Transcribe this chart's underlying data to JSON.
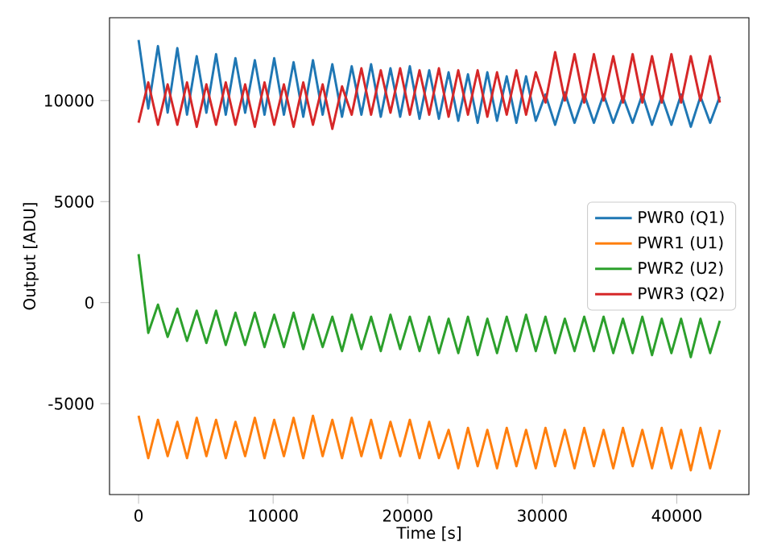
{
  "chart_data": {
    "type": "line",
    "xlabel": "Time [s]",
    "ylabel": "Output [ADU]",
    "x": [
      0,
      720,
      1440,
      2160,
      2880,
      3600,
      4320,
      5040,
      5760,
      6480,
      7200,
      7920,
      8640,
      9360,
      10080,
      10800,
      11520,
      12240,
      12960,
      13680,
      14400,
      15120,
      15840,
      16560,
      17280,
      18000,
      18720,
      19440,
      20160,
      20880,
      21600,
      22320,
      23040,
      23760,
      24480,
      25200,
      25920,
      26640,
      27360,
      28080,
      28800,
      29520,
      30240,
      30960,
      31680,
      32400,
      33120,
      33840,
      34560,
      35280,
      36000,
      36720,
      37440,
      38160,
      38880,
      39600,
      40320,
      41040,
      41760,
      42480,
      43200
    ],
    "series": [
      {
        "name": "PWR0 (Q1)",
        "color": "#1f77b4",
        "values": [
          13000,
          9600,
          12700,
          9400,
          12600,
          9300,
          12200,
          9400,
          12300,
          9300,
          12100,
          9400,
          12000,
          9300,
          12100,
          9300,
          11900,
          9200,
          12000,
          9300,
          11800,
          9200,
          11700,
          9300,
          11800,
          9200,
          11600,
          9200,
          11700,
          9100,
          11500,
          9100,
          11400,
          9000,
          11300,
          8900,
          11400,
          9000,
          11200,
          8900,
          11200,
          9000,
          10300,
          8800,
          10400,
          8900,
          10300,
          8900,
          10300,
          8900,
          10200,
          8900,
          10300,
          8800,
          10200,
          8800,
          10300,
          8700,
          10200,
          8900,
          10200
        ]
      },
      {
        "name": "PWR1 (U1)",
        "color": "#ff7f0e",
        "values": [
          -5600,
          -7700,
          -5800,
          -7600,
          -5900,
          -7700,
          -5700,
          -7600,
          -5800,
          -7700,
          -5900,
          -7600,
          -5700,
          -7700,
          -5800,
          -7600,
          -5700,
          -7700,
          -5600,
          -7600,
          -5800,
          -7700,
          -5700,
          -7600,
          -5800,
          -7700,
          -5900,
          -7600,
          -5800,
          -7700,
          -5900,
          -7700,
          -6300,
          -8200,
          -6200,
          -8100,
          -6300,
          -8200,
          -6200,
          -8100,
          -6300,
          -8200,
          -6200,
          -8100,
          -6300,
          -8200,
          -6200,
          -8100,
          -6300,
          -8200,
          -6200,
          -8100,
          -6300,
          -8200,
          -6200,
          -8200,
          -6300,
          -8300,
          -6200,
          -8200,
          -6300
        ]
      },
      {
        "name": "PWR2 (U2)",
        "color": "#2ca02c",
        "values": [
          2400,
          -1500,
          -100,
          -1700,
          -300,
          -1900,
          -400,
          -2000,
          -400,
          -2100,
          -500,
          -2100,
          -500,
          -2200,
          -600,
          -2200,
          -500,
          -2300,
          -600,
          -2200,
          -700,
          -2400,
          -600,
          -2300,
          -700,
          -2400,
          -600,
          -2300,
          -700,
          -2400,
          -700,
          -2500,
          -800,
          -2500,
          -700,
          -2600,
          -800,
          -2500,
          -700,
          -2400,
          -600,
          -2400,
          -700,
          -2500,
          -800,
          -2400,
          -700,
          -2400,
          -700,
          -2500,
          -800,
          -2500,
          -700,
          -2600,
          -800,
          -2500,
          -800,
          -2700,
          -800,
          -2500,
          -900
        ]
      },
      {
        "name": "PWR3 (Q2)",
        "color": "#d62728",
        "values": [
          8900,
          10900,
          8800,
          10800,
          8800,
          10900,
          8700,
          10800,
          8800,
          10900,
          8800,
          10800,
          8700,
          10900,
          8800,
          10800,
          8700,
          10900,
          8800,
          10800,
          8600,
          10700,
          9300,
          11600,
          9300,
          11500,
          9400,
          11600,
          9300,
          11500,
          9300,
          11600,
          9200,
          11500,
          9300,
          11500,
          9200,
          11400,
          9300,
          11500,
          9300,
          11400,
          9900,
          12400,
          10000,
          12300,
          9900,
          12300,
          10000,
          12200,
          9900,
          12300,
          9900,
          12200,
          9900,
          12300,
          9900,
          12200,
          10000,
          12200,
          9900
        ]
      }
    ],
    "xlim": [
      -2160,
      45360
    ],
    "ylim": [
      -9500,
      14100
    ],
    "xticks": [
      0,
      10000,
      20000,
      30000,
      40000
    ],
    "yticks": [
      -5000,
      0,
      5000,
      10000
    ],
    "legend": "right"
  }
}
